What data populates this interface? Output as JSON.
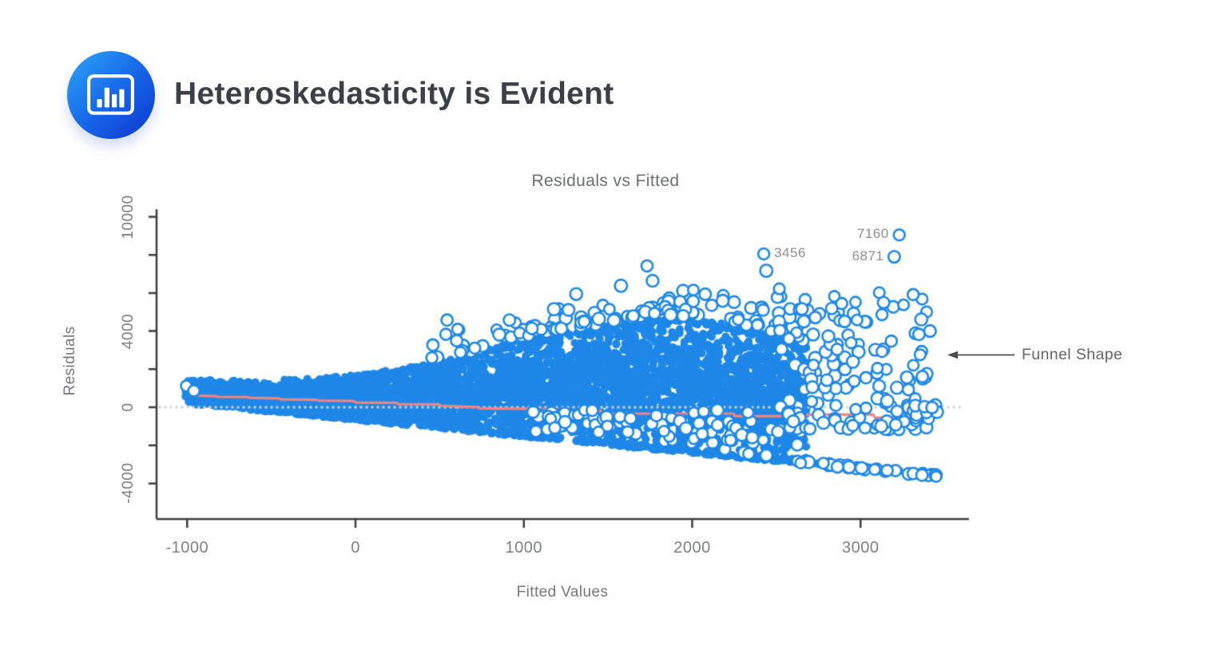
{
  "header": {
    "title": "Heteroskedasticity is Evident",
    "logo_icon": "bar-chart-icon",
    "logo_gradient": [
      "#2EA6F6",
      "#0D36CE"
    ]
  },
  "chart": {
    "title": "Residuals vs Fitted",
    "x_axis_label": "Fitted Values",
    "y_axis_label": "Residuals",
    "annotation_text": "Funnel Shape"
  },
  "chart_data": {
    "type": "scatter",
    "title": "Residuals vs Fitted",
    "xlabel": "Fitted Values",
    "ylabel": "Residuals",
    "xlim": [
      -1180,
      3644
    ],
    "ylim": [
      -4900,
      10400
    ],
    "x_ticks": [
      -1000,
      0,
      1000,
      2000,
      3000
    ],
    "x_tick_labels": [
      "-1000",
      "0",
      "1000",
      "2000",
      "3000"
    ],
    "y_ticks": [
      10000,
      8000,
      6000,
      4000,
      2000,
      0,
      -2000,
      -4000
    ],
    "y_tick_labels": [
      "10000",
      "",
      "",
      "4000",
      "",
      "0",
      "",
      "-4000"
    ],
    "grid": false,
    "pattern": "funnel-shaped residual cloud: spread of residuals increases with fitted values, indicating heteroskedasticity",
    "point_color": "#1E88E8",
    "open_point_fill": "#FFFFFF",
    "envelope": {
      "x": [
        -1010,
        -500,
        0,
        500,
        1000,
        1500,
        1800,
        2100,
        2400,
        2680
      ],
      "upper": [
        1450,
        1400,
        1700,
        2350,
        3600,
        4300,
        4700,
        4600,
        4000,
        3300
      ],
      "lower": [
        210,
        -232,
        -666,
        -1100,
        -1533,
        -1967,
        -2227,
        -2487,
        -2747,
        -2990
      ]
    },
    "lower_bound_line": {
      "x0": -1010,
      "y0": 210,
      "x1": 3450,
      "y1": -3657
    },
    "labeled_outliers": [
      {
        "label": "3456",
        "x": 2425,
        "y": 8050,
        "label_side": "right"
      },
      {
        "label": "6871",
        "x": 3200,
        "y": 7900,
        "label_side": "left"
      },
      {
        "label": "7160",
        "x": 3230,
        "y": 9050,
        "label_side": "left"
      }
    ],
    "extra_open_points": [
      [
        -1005,
        1120
      ],
      [
        -960,
        860
      ],
      [
        1732,
        7420
      ],
      [
        2440,
        7170
      ],
      [
        3284,
        922
      ],
      [
        3326,
        84
      ],
      [
        3392,
        -294
      ],
      [
        3454,
        -252
      ],
      [
        3380,
        30
      ],
      [
        3425,
        -15
      ]
    ],
    "trend_line": {
      "color": "#F4837C",
      "points": [
        [
          -985,
          620
        ],
        [
          -825,
          580
        ],
        [
          -815,
          545
        ],
        [
          -640,
          535
        ],
        [
          -630,
          495
        ],
        [
          -455,
          470
        ],
        [
          -445,
          415
        ],
        [
          -230,
          395
        ],
        [
          -220,
          355
        ],
        [
          -10,
          330
        ],
        [
          0,
          250
        ],
        [
          245,
          230
        ],
        [
          255,
          165
        ],
        [
          495,
          150
        ],
        [
          505,
          80
        ],
        [
          725,
          5
        ],
        [
          735,
          -60
        ],
        [
          1155,
          -90
        ],
        [
          1165,
          -170
        ],
        [
          1455,
          -185
        ],
        [
          1465,
          -335
        ],
        [
          2245,
          -335
        ],
        [
          2255,
          -465
        ],
        [
          2675,
          -465
        ],
        [
          2685,
          -380
        ],
        [
          3075,
          -380
        ],
        [
          3085,
          -545
        ],
        [
          3445,
          -545
        ]
      ]
    },
    "zero_line": {
      "y": 0,
      "style": "dotted",
      "color": "#D2D2D2"
    },
    "axis_color": "#3d3d3d",
    "generator": {
      "seed": 42,
      "dense_count": 4600,
      "top_edge_count": 320,
      "tail_count": 310,
      "open_top_count": 130,
      "open_right_count": 150,
      "open_below_count": 90
    }
  }
}
